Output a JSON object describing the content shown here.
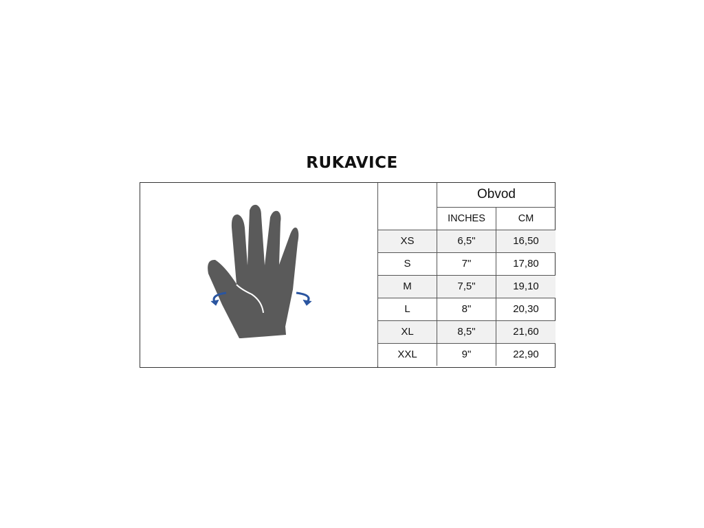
{
  "title": "RUKAVICE",
  "table": {
    "group_header": "Obvod",
    "columns": [
      "INCHES",
      "CM"
    ],
    "rows": [
      {
        "size": "XS",
        "inches": "6,5\"",
        "cm": "16,50"
      },
      {
        "size": "S",
        "inches": "7\"",
        "cm": "17,80"
      },
      {
        "size": "M",
        "inches": "7,5\"",
        "cm": "19,10"
      },
      {
        "size": "L",
        "inches": "8\"",
        "cm": "20,30"
      },
      {
        "size": "XL",
        "inches": "8,5\"",
        "cm": "21,60"
      },
      {
        "size": "XXL",
        "inches": "9\"",
        "cm": "22,90"
      }
    ]
  },
  "colors": {
    "hand": "#5a5a5a",
    "arrow": "#2a55a0",
    "alt_row": "#f1f1f1"
  },
  "icons": {
    "illustration": "hand-circumference-icon"
  }
}
